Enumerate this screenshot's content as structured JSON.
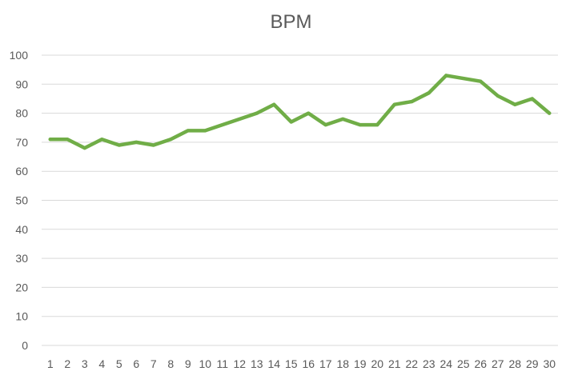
{
  "chart_data": {
    "type": "line",
    "title": "BPM",
    "xlabel": "",
    "ylabel": "",
    "categories": [
      "1",
      "2",
      "3",
      "4",
      "5",
      "6",
      "7",
      "8",
      "9",
      "10",
      "11",
      "12",
      "13",
      "14",
      "15",
      "16",
      "17",
      "18",
      "19",
      "20",
      "21",
      "22",
      "23",
      "24",
      "25",
      "26",
      "27",
      "28",
      "29",
      "30"
    ],
    "series": [
      {
        "values": [
          71,
          71,
          68,
          71,
          69,
          70,
          69,
          71,
          74,
          74,
          76,
          78,
          80,
          83,
          77,
          80,
          76,
          78,
          76,
          76,
          83,
          84,
          87,
          93,
          92,
          91,
          86,
          83,
          85,
          80
        ],
        "color": "#70ad47"
      }
    ],
    "ylim": [
      0,
      100
    ],
    "yticks": [
      0,
      10,
      20,
      30,
      40,
      50,
      60,
      70,
      80,
      90,
      100
    ],
    "grid": true,
    "legend": "none"
  }
}
